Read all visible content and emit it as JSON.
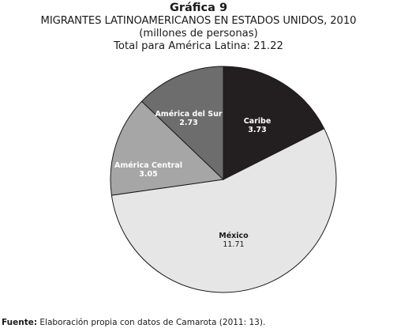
{
  "figure": {
    "number_label": "Gráfica 9",
    "title": "MIGRANTES LATINOAMERICANOS EN ESTADOS UNIDOS, 2010",
    "subtitle": "(millones de personas)",
    "total_line": "Total para América Latina: 21.22"
  },
  "chart_data": {
    "type": "pie",
    "title": "MIGRANTES LATINOAMERICANOS EN ESTADOS UNIDOS, 2010",
    "subtitle": "(millones de personas)",
    "total": 21.22,
    "slices": [
      {
        "label": "Caribe",
        "value": 3.73,
        "value_label": "3.73",
        "color": "#231f20",
        "text_color": "#ffffff"
      },
      {
        "label": "México",
        "value": 11.71,
        "value_label": "11.71",
        "color": "#e6e6e6",
        "text_color": "#1a1a1a"
      },
      {
        "label": "América Central",
        "value": 3.05,
        "value_label": "3.05",
        "color": "#a6a6a6",
        "text_color": "#ffffff"
      },
      {
        "label": "América del Sur",
        "value": 2.73,
        "value_label": "2.73",
        "color": "#6d6d6d",
        "text_color": "#ffffff"
      }
    ],
    "start_angle": "12 o'clock",
    "direction": "clockwise",
    "legend": "none"
  },
  "source": {
    "prefix": "Fuente:",
    "text": " Elaboración propia con datos de Camarota (2011: 13)."
  }
}
